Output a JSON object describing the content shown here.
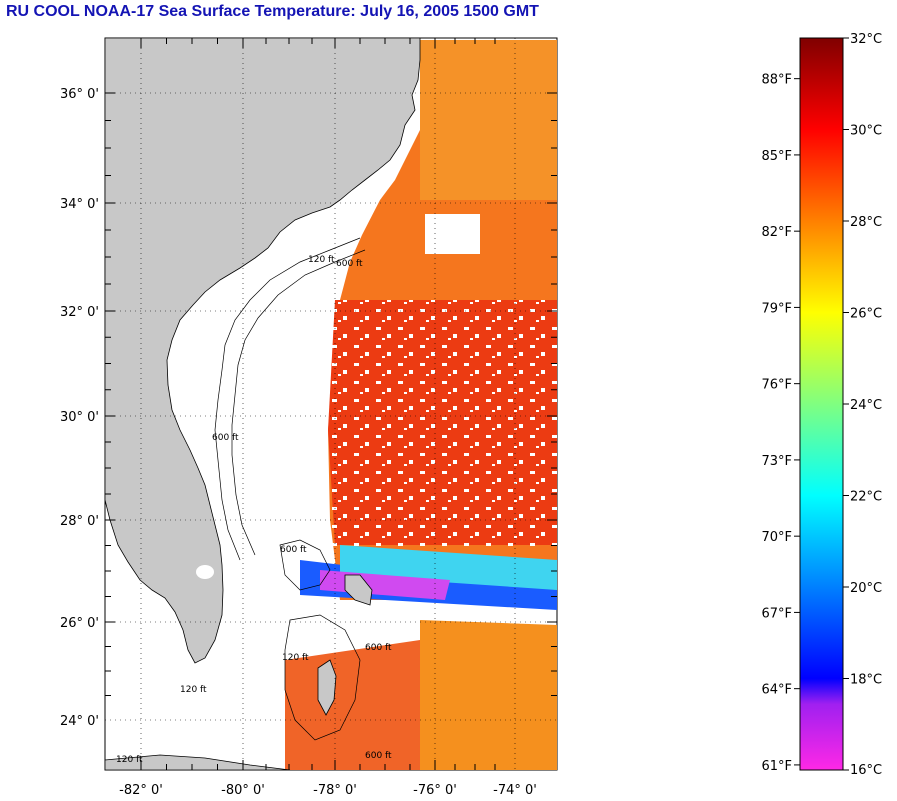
{
  "title": "RU COOL  NOAA-17  Sea Surface Temperature:  July 16, 2005 1500 GMT",
  "map": {
    "lat_labels": [
      "36° 0'",
      "34° 0'",
      "32° 0'",
      "30° 0'",
      "28° 0'",
      "26° 0'",
      "24° 0'"
    ],
    "lon_labels": [
      "-82° 0'",
      "-80° 0'",
      "-78° 0'",
      "-76° 0'",
      "-74° 0'"
    ],
    "contour_labels": [
      "120 ft",
      "600 ft",
      "600 ft",
      "120 ft",
      "600 ft",
      "120 ft",
      "600 ft",
      "120 ft",
      "600 ft"
    ],
    "colors": {
      "land": "#c8c8c8",
      "no_data": "#ffffff",
      "sst_warm": "#f03c0a",
      "sst_mid": "#f58c14",
      "sst_cool": "#1e64ff"
    }
  },
  "colorbar": {
    "celsius_labels": [
      "32°C",
      "30°C",
      "28°C",
      "26°C",
      "24°C",
      "22°C",
      "20°C",
      "18°C",
      "16°C"
    ],
    "fahrenheit_labels": [
      "88°F",
      "85°F",
      "82°F",
      "79°F",
      "76°F",
      "73°F",
      "70°F",
      "67°F",
      "64°F",
      "61°F"
    ],
    "celsius_min": 16,
    "celsius_max": 32
  }
}
